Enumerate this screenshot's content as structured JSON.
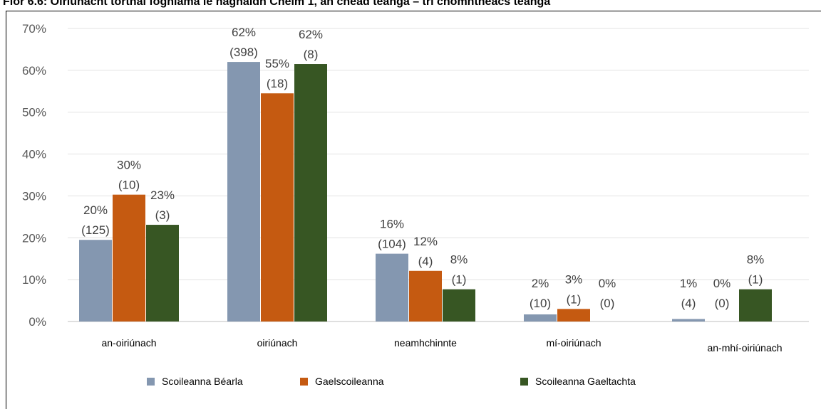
{
  "title": "Fíor 6.6: Oiriúnacht torthaí foghlama le haghaidh Chéim 1, an chéad teanga – trí chomhthéacs teanga",
  "chart_data": {
    "type": "bar",
    "categories": [
      "an-oiriúnach",
      "oiriúnach",
      "neamhchinnte",
      "mí-oiriúnach",
      "an-mhí-oiriúnach"
    ],
    "series": [
      {
        "name": "Scoileanna Béarla",
        "color": "#8497B0",
        "values": [
          19.5,
          62,
          16.2,
          1.7,
          0.6
        ],
        "labels": [
          [
            "20%",
            "(125)"
          ],
          [
            "62%",
            "(398)"
          ],
          [
            "16%",
            "(104)"
          ],
          [
            "2%",
            "(10)"
          ],
          [
            "1%",
            "(4)"
          ]
        ]
      },
      {
        "name": "Gaelscoileanna",
        "color": "#C55A11",
        "values": [
          30.3,
          54.5,
          12.1,
          3.0,
          0
        ],
        "labels": [
          [
            "30%",
            "(10)"
          ],
          [
            "55%",
            "(18)"
          ],
          [
            "12%",
            "(4)"
          ],
          [
            "3%",
            "(1)"
          ],
          [
            "0%",
            "(0)"
          ]
        ]
      },
      {
        "name": "Scoileanna Gaeltachta",
        "color": "#375623",
        "values": [
          23.1,
          61.5,
          7.7,
          0,
          7.7
        ],
        "labels": [
          [
            "23%",
            "(3)"
          ],
          [
            "62%",
            "(8)"
          ],
          [
            "8%",
            "(1)"
          ],
          [
            "0%",
            "(0)"
          ],
          [
            "8%",
            "(1)"
          ]
        ]
      }
    ],
    "yticks": [
      "0%",
      "10%",
      "20%",
      "30%",
      "40%",
      "50%",
      "60%",
      "70%"
    ],
    "ylim": [
      0,
      70
    ],
    "grid": true,
    "legend_position": "bottom"
  }
}
